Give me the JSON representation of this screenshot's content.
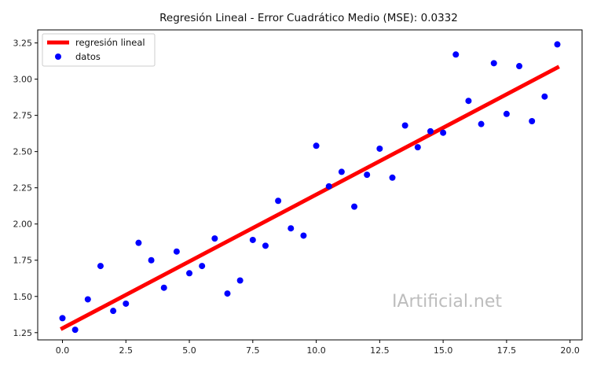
{
  "chart_data": {
    "type": "scatter",
    "title": "Regresión Lineal - Error Cuadrático Medio (MSE): 0.0332",
    "xlabel": "",
    "ylabel": "",
    "xlim": [
      -0.975,
      20.475
    ],
    "ylim": [
      1.2,
      3.34
    ],
    "x_ticks": [
      0.0,
      2.5,
      5.0,
      7.5,
      10.0,
      12.5,
      15.0,
      17.5,
      20.0
    ],
    "x_tick_labels": [
      "0.0",
      "2.5",
      "5.0",
      "7.5",
      "10.0",
      "12.5",
      "15.0",
      "17.5",
      "20.0"
    ],
    "y_ticks": [
      1.25,
      1.5,
      1.75,
      2.0,
      2.25,
      2.5,
      2.75,
      3.0,
      3.25
    ],
    "y_tick_labels": [
      "1.25",
      "1.50",
      "1.75",
      "2.00",
      "2.25",
      "2.50",
      "2.75",
      "3.00",
      "3.25"
    ],
    "grid": false,
    "legend_position": "top-left",
    "series": [
      {
        "name": "regresión lineal",
        "kind": "line",
        "color": "#ff0000",
        "x": [
          0.0,
          19.5
        ],
        "y": [
          1.28,
          3.08
        ]
      },
      {
        "name": "datos",
        "kind": "scatter",
        "color": "#0000ff",
        "x": [
          0.0,
          0.5,
          1.0,
          1.5,
          2.0,
          2.5,
          3.0,
          3.5,
          4.0,
          4.5,
          5.0,
          5.5,
          6.0,
          6.5,
          7.0,
          7.5,
          8.0,
          8.5,
          9.0,
          9.5,
          10.0,
          10.5,
          11.0,
          11.5,
          12.0,
          12.5,
          13.0,
          13.5,
          14.0,
          14.5,
          15.0,
          15.5,
          16.0,
          16.5,
          17.0,
          17.5,
          18.0,
          18.5,
          19.0,
          19.5
        ],
        "y": [
          1.35,
          1.27,
          1.48,
          1.71,
          1.4,
          1.45,
          1.87,
          1.75,
          1.56,
          1.81,
          1.66,
          1.71,
          1.9,
          1.52,
          1.61,
          1.89,
          1.85,
          2.16,
          1.97,
          1.92,
          2.54,
          2.26,
          2.36,
          2.12,
          2.34,
          2.52,
          2.32,
          2.68,
          2.53,
          2.64,
          2.63,
          3.17,
          2.85,
          2.69,
          3.11,
          2.76,
          3.09,
          2.71,
          2.88,
          3.24
        ]
      }
    ],
    "annotations": [
      "IArtificial.net"
    ]
  }
}
